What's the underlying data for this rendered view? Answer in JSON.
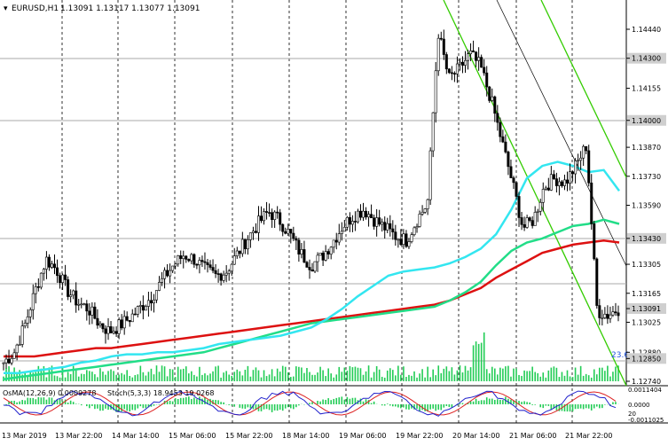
{
  "header": {
    "symbol": "EURUSD,H1",
    "ohlc": "1.13091 1.13117 1.13077 1.13091"
  },
  "price_axis": {
    "labels": [
      "1.14440",
      "1.14300",
      "1.14155",
      "1.14000",
      "1.13870",
      "1.13730",
      "1.13590",
      "1.13430",
      "1.13305",
      "1.13165",
      "1.13091",
      "1.13025",
      "1.12880",
      "1.12850",
      "1.12740"
    ],
    "highlighted": [
      "1.14300",
      "1.14000",
      "1.13430",
      "1.13091",
      "1.12850"
    ]
  },
  "time_axis": {
    "labels": [
      "13 Mar 2019",
      "13 Mar 22:00",
      "14 Mar 14:00",
      "15 Mar 06:00",
      "15 Mar 22:00",
      "18 Mar 14:00",
      "19 Mar 06:00",
      "19 Mar 22:00",
      "20 Mar 14:00",
      "21 Mar 06:00",
      "21 Mar 22:00"
    ]
  },
  "fibo_label": "23.6",
  "indicators": {
    "osma_label": "OsMA(12,26,9) 0.0009278",
    "stoch_label": "Stoch(5,3,3) 18.9453 19.0268",
    "right_labels": [
      "0.0011404",
      "0.0000",
      "20",
      "-0.0011025"
    ]
  },
  "colors": {
    "candle": "#000000",
    "ema_fast": "#33e6f0",
    "ema_mid": "#22dd88",
    "ema_slow": "#dd1111",
    "channel": "#33cc00",
    "histogram": "#22cc55",
    "stoch_main": "#2222cc",
    "stoch_signal": "#dd2222",
    "highlight_label_bg": "#cfcfcf"
  },
  "chart_data": [
    {
      "type": "candlestick",
      "title": "EURUSD,H1",
      "ylim": [
        1.1274,
        1.1454
      ],
      "series": [
        {
          "name": "price",
          "values": [
            1.1283,
            1.1288,
            1.1301,
            1.1318,
            1.1333,
            1.1328,
            1.1318,
            1.1312,
            1.1309,
            1.1302,
            1.1298,
            1.1301,
            1.1305,
            1.131,
            1.1315,
            1.1323,
            1.133,
            1.1335,
            1.1333,
            1.1328,
            1.1325,
            1.1327,
            1.1335,
            1.1343,
            1.135,
            1.1356,
            1.1352,
            1.1345,
            1.1336,
            1.133,
            1.1334,
            1.1341,
            1.1349,
            1.1354,
            1.1357,
            1.1352,
            1.1348,
            1.1344,
            1.1342,
            1.1352,
            1.136,
            1.1443,
            1.142,
            1.1425,
            1.1432,
            1.1426,
            1.141,
            1.139,
            1.137,
            1.1348,
            1.1352,
            1.1368,
            1.1372,
            1.137,
            1.1378,
            1.1388,
            1.1308,
            1.1306,
            1.1309
          ]
        }
      ]
    },
    {
      "type": "line",
      "title": "Moving averages",
      "series": [
        {
          "name": "ema_fast",
          "values": [
            1.1278,
            1.1278,
            1.1279,
            1.128,
            1.1281,
            1.1283,
            1.1284,
            1.1286,
            1.1287,
            1.1287,
            1.1288,
            1.1288,
            1.1289,
            1.129,
            1.1292,
            1.1293,
            1.1294,
            1.1295,
            1.1296,
            1.1298,
            1.13,
            1.1304,
            1.1309,
            1.1315,
            1.132,
            1.1325,
            1.1327,
            1.1328,
            1.1329,
            1.1331,
            1.1334,
            1.1338,
            1.1345,
            1.1357,
            1.1372,
            1.1378,
            1.138,
            1.1378,
            1.1375,
            1.1376,
            1.1366
          ]
        },
        {
          "name": "ema_mid",
          "values": [
            1.1275,
            1.1276,
            1.1277,
            1.1278,
            1.1279,
            1.128,
            1.1281,
            1.1282,
            1.1283,
            1.1284,
            1.1285,
            1.1286,
            1.1287,
            1.1288,
            1.129,
            1.1292,
            1.1294,
            1.1296,
            1.1298,
            1.13,
            1.1302,
            1.1303,
            1.1304,
            1.1305,
            1.1306,
            1.1307,
            1.1308,
            1.1309,
            1.131,
            1.1313,
            1.1317,
            1.1322,
            1.133,
            1.1337,
            1.1341,
            1.1343,
            1.1346,
            1.1349,
            1.135,
            1.1352,
            1.135
          ]
        },
        {
          "name": "ema_slow",
          "values": [
            1.1286,
            1.1286,
            1.1286,
            1.1287,
            1.1288,
            1.1289,
            1.129,
            1.129,
            1.1291,
            1.1292,
            1.1293,
            1.1294,
            1.1295,
            1.1296,
            1.1297,
            1.1298,
            1.1299,
            1.13,
            1.1301,
            1.1302,
            1.1303,
            1.1304,
            1.1305,
            1.1306,
            1.1307,
            1.1308,
            1.1309,
            1.131,
            1.1311,
            1.1313,
            1.1316,
            1.1319,
            1.1324,
            1.1328,
            1.1332,
            1.1336,
            1.1338,
            1.134,
            1.1341,
            1.1342,
            1.1341
          ]
        }
      ]
    }
  ]
}
